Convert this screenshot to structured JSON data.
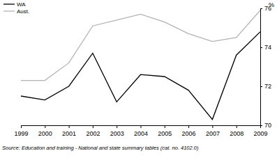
{
  "chart_data": {
    "type": "line",
    "x": [
      1999,
      2000,
      2001,
      2002,
      2003,
      2004,
      2005,
      2006,
      2007,
      2008,
      2009
    ],
    "series": [
      {
        "name": "WA",
        "color": "#000000",
        "values": [
          71.5,
          71.3,
          72.0,
          73.7,
          71.2,
          72.6,
          72.5,
          71.8,
          70.3,
          73.6,
          74.8
        ]
      },
      {
        "name": "Aust.",
        "color": "#b3b3b3",
        "values": [
          72.3,
          72.3,
          73.2,
          75.1,
          75.4,
          75.7,
          75.3,
          74.7,
          74.3,
          74.5,
          75.9
        ]
      }
    ],
    "xlim": [
      1999,
      2009
    ],
    "xticks": [
      1999,
      2000,
      2001,
      2002,
      2003,
      2004,
      2005,
      2006,
      2007,
      2008,
      2009
    ],
    "ylim": [
      70,
      76
    ],
    "yticks": [
      70,
      72,
      74,
      76
    ],
    "y_label": "%",
    "legend": "top-left",
    "source": "Source: Education and training - National and state summary tables (cat. no. 4102.0)"
  }
}
